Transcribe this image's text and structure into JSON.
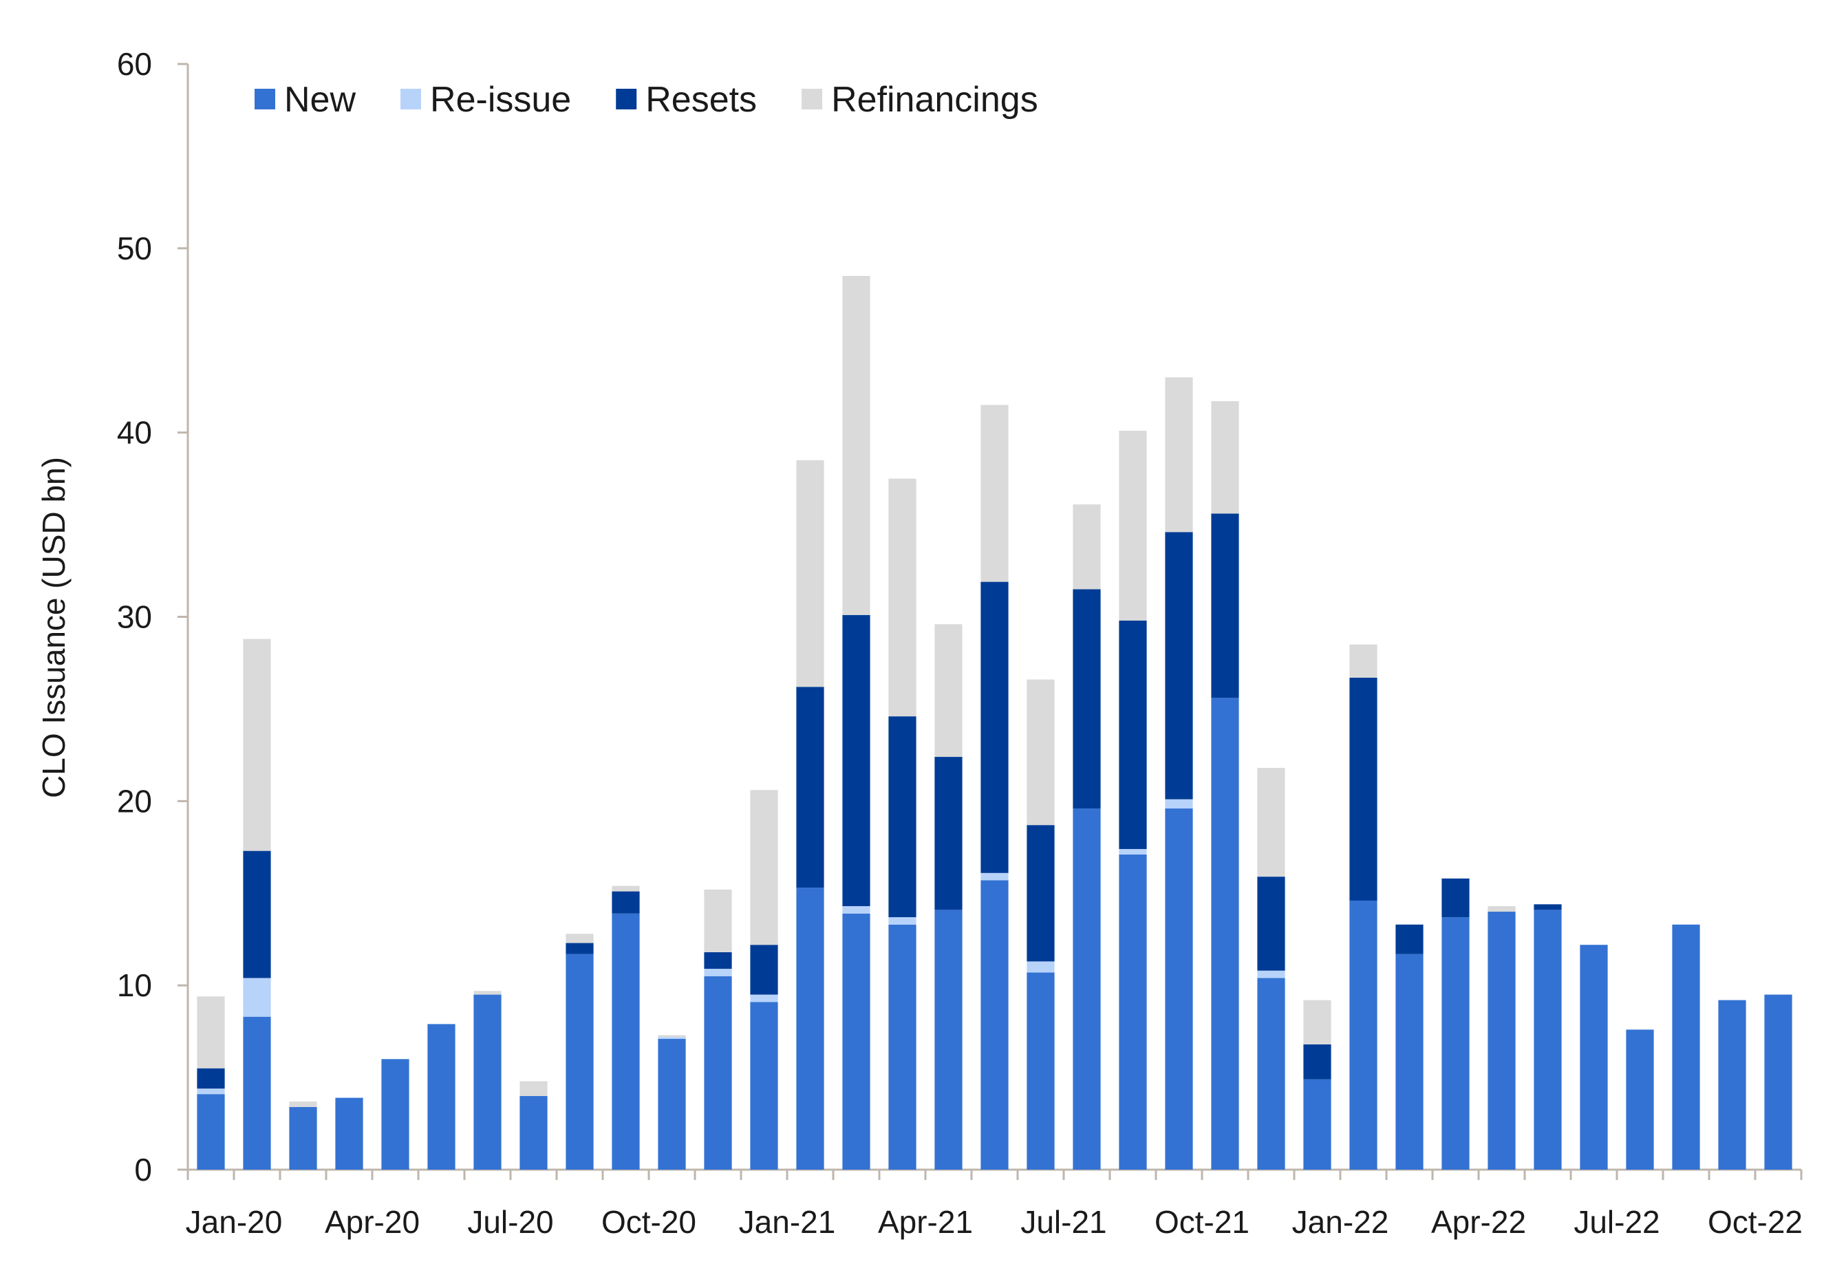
{
  "chart_data": {
    "type": "bar",
    "stacked": true,
    "title": "",
    "xlabel": "",
    "ylabel": "CLO Issuance (USD bn)",
    "ylim": [
      0,
      60
    ],
    "yticks": [
      0,
      10,
      20,
      30,
      40,
      50,
      60
    ],
    "grid": false,
    "legend_position": "top-left",
    "categories": [
      "Jan-20",
      "Feb-20",
      "Mar-20",
      "Apr-20",
      "May-20",
      "Jun-20",
      "Jul-20",
      "Aug-20",
      "Sep-20",
      "Oct-20",
      "Nov-20",
      "Dec-20",
      "Jan-21",
      "Feb-21",
      "Mar-21",
      "Apr-21",
      "May-21",
      "Jun-21",
      "Jul-21",
      "Aug-21",
      "Sep-21",
      "Oct-21",
      "Nov-21",
      "Dec-21",
      "Jan-22",
      "Feb-22",
      "Mar-22",
      "Apr-22",
      "May-22",
      "Jun-22",
      "Jul-22",
      "Aug-22",
      "Sep-22",
      "Oct-22",
      "Nov-22"
    ],
    "x_tick_labels": [
      {
        "index": 0,
        "label": "Jan-20"
      },
      {
        "index": 3,
        "label": "Apr-20"
      },
      {
        "index": 6,
        "label": "Jul-20"
      },
      {
        "index": 9,
        "label": "Oct-20"
      },
      {
        "index": 12,
        "label": "Jan-21"
      },
      {
        "index": 15,
        "label": "Apr-21"
      },
      {
        "index": 18,
        "label": "Jul-21"
      },
      {
        "index": 21,
        "label": "Oct-21"
      },
      {
        "index": 24,
        "label": "Jan-22"
      },
      {
        "index": 27,
        "label": "Apr-22"
      },
      {
        "index": 30,
        "label": "Jul-22"
      },
      {
        "index": 33,
        "label": "Oct-22"
      }
    ],
    "series": [
      {
        "name": "New",
        "color": "#3372D3",
        "values": [
          4.1,
          8.3,
          3.4,
          3.9,
          6.0,
          7.9,
          9.5,
          4.0,
          11.7,
          13.9,
          7.1,
          10.5,
          9.1,
          15.3,
          13.9,
          13.3,
          14.1,
          15.7,
          10.7,
          19.6,
          17.1,
          19.6,
          25.6,
          10.4,
          4.9,
          14.6,
          11.7,
          13.7,
          14.0,
          14.1,
          12.2,
          7.6,
          13.3,
          9.2,
          9.5
        ]
      },
      {
        "name": "Re-issue",
        "color": "#B8D3FA",
        "values": [
          0.3,
          2.1,
          0,
          0,
          0,
          0,
          0,
          0,
          0,
          0,
          0.1,
          0.4,
          0.4,
          0,
          0.4,
          0.4,
          0,
          0.4,
          0.6,
          0,
          0.3,
          0.5,
          0,
          0.4,
          0,
          0,
          0,
          0,
          0,
          0,
          0,
          0,
          0,
          0,
          0
        ]
      },
      {
        "name": "Resets",
        "color": "#003C96",
        "values": [
          1.1,
          6.9,
          0,
          0,
          0,
          0,
          0,
          0,
          0.6,
          1.2,
          0,
          0.9,
          2.7,
          10.9,
          15.8,
          10.9,
          8.3,
          15.8,
          7.4,
          11.9,
          12.4,
          14.5,
          10.0,
          5.1,
          1.9,
          12.1,
          1.6,
          2.1,
          0,
          0.3,
          0,
          0,
          0,
          0,
          0
        ]
      },
      {
        "name": "Refinancings",
        "color": "#DADADA",
        "values": [
          3.9,
          11.5,
          0.3,
          0,
          0,
          0,
          0.2,
          0.8,
          0.5,
          0.3,
          0.1,
          3.4,
          8.4,
          12.3,
          18.4,
          12.9,
          7.2,
          9.6,
          7.9,
          4.6,
          10.3,
          8.4,
          6.1,
          5.9,
          2.4,
          1.8,
          0,
          0,
          0.3,
          0,
          0,
          0,
          0,
          0,
          0
        ]
      }
    ]
  }
}
